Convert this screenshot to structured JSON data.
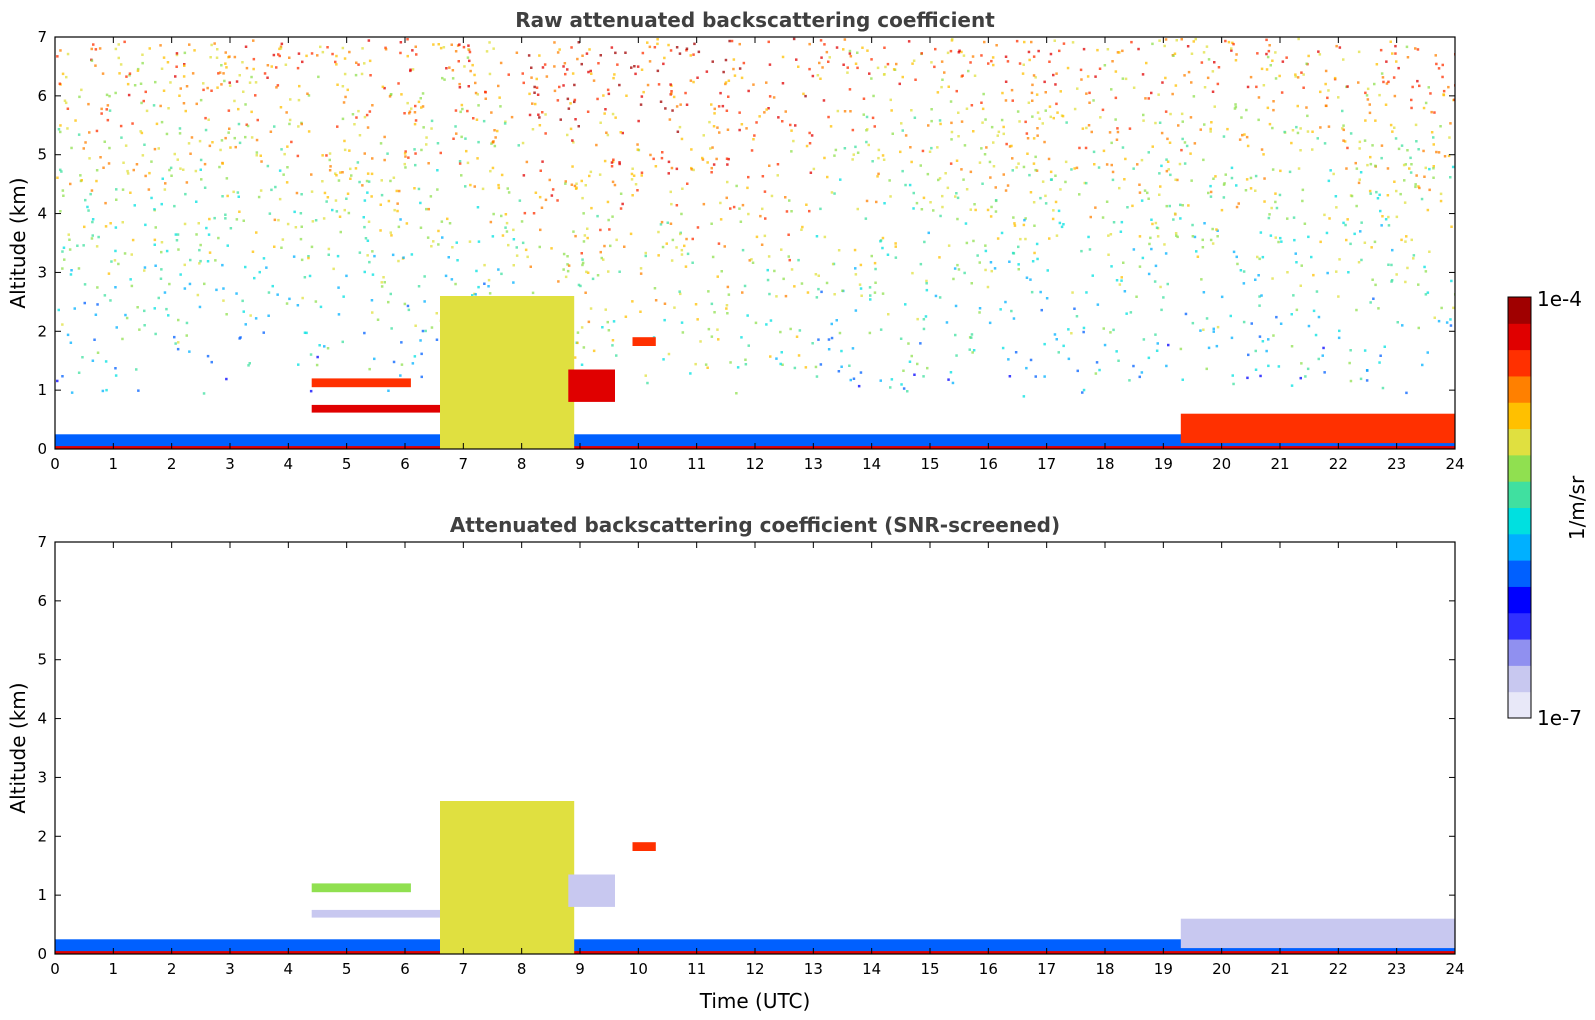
{
  "chart_data": [
    {
      "type": "heatmap",
      "title": "Raw attenuated backscattering coefficient",
      "xlabel": "",
      "ylabel": "Altitude (km)",
      "xlim": [
        0,
        24
      ],
      "ylim": [
        0,
        7
      ],
      "xticks": [
        "0",
        "1",
        "2",
        "3",
        "4",
        "5",
        "6",
        "7",
        "8",
        "9",
        "10",
        "11",
        "12",
        "13",
        "14",
        "15",
        "16",
        "17",
        "18",
        "19",
        "20",
        "21",
        "22",
        "23",
        "24"
      ],
      "yticks": [
        "0",
        "1",
        "2",
        "3",
        "4",
        "5",
        "6",
        "7"
      ],
      "noise": true,
      "features": [
        {
          "name": "surface layer",
          "t0": 0,
          "t1": 24,
          "z0": 0,
          "z1": 0.1,
          "level": 0.95
        },
        {
          "name": "boundary layer",
          "t0": 0,
          "t1": 24,
          "z0": 0.05,
          "z1": 0.25,
          "level": 0.3
        },
        {
          "name": "aerosol plume",
          "t0": 6.6,
          "t1": 8.9,
          "z0": 0,
          "z1": 2.6,
          "level": 0.65
        },
        {
          "name": "elevated layer",
          "t0": 4.4,
          "t1": 6.1,
          "z0": 1.05,
          "z1": 1.2,
          "level": 0.85
        },
        {
          "name": "elevated layer",
          "t0": 4.4,
          "t1": 6.6,
          "z0": 0.62,
          "z1": 0.75,
          "level": 0.9
        },
        {
          "name": "cloud patch",
          "t0": 8.8,
          "t1": 9.6,
          "z0": 0.8,
          "z1": 1.35,
          "level": 0.9
        },
        {
          "name": "cloud patch",
          "t0": 9.9,
          "t1": 10.3,
          "z0": 1.75,
          "z1": 1.9,
          "level": 0.85
        },
        {
          "name": "evening layer",
          "t0": 19.3,
          "t1": 24,
          "z0": 0.1,
          "z1": 0.6,
          "level": 0.85
        }
      ]
    },
    {
      "type": "heatmap",
      "title": "Attenuated backscattering coefficient (SNR-screened)",
      "xlabel": "Time (UTC)",
      "ylabel": "Altitude (km)",
      "xlim": [
        0,
        24
      ],
      "ylim": [
        0,
        7
      ],
      "xticks": [
        "0",
        "1",
        "2",
        "3",
        "4",
        "5",
        "6",
        "7",
        "8",
        "9",
        "10",
        "11",
        "12",
        "13",
        "14",
        "15",
        "16",
        "17",
        "18",
        "19",
        "20",
        "21",
        "22",
        "23",
        "24"
      ],
      "yticks": [
        "0",
        "1",
        "2",
        "3",
        "4",
        "5",
        "6",
        "7"
      ],
      "noise": false,
      "features": [
        {
          "name": "surface layer",
          "t0": 0,
          "t1": 24,
          "z0": 0,
          "z1": 0.1,
          "level": 0.95
        },
        {
          "name": "boundary layer",
          "t0": 0,
          "t1": 24,
          "z0": 0.05,
          "z1": 0.25,
          "level": 0.3
        },
        {
          "name": "aerosol plume",
          "t0": 6.6,
          "t1": 8.9,
          "z0": 0,
          "z1": 2.6,
          "level": 0.65
        },
        {
          "name": "elevated layer",
          "t0": 4.4,
          "t1": 6.1,
          "z0": 1.05,
          "z1": 1.2,
          "level": 0.6
        },
        {
          "name": "elevated layer",
          "t0": 4.4,
          "t1": 6.6,
          "z0": 0.62,
          "z1": 0.75,
          "level": 0.05
        },
        {
          "name": "cloud patch",
          "t0": 8.8,
          "t1": 9.6,
          "z0": 0.8,
          "z1": 1.35,
          "level": 0.05
        },
        {
          "name": "cloud patch",
          "t0": 9.9,
          "t1": 10.3,
          "z0": 1.75,
          "z1": 1.9,
          "level": 0.85
        },
        {
          "name": "evening layer",
          "t0": 19.3,
          "t1": 24,
          "z0": 0.1,
          "z1": 0.6,
          "level": 0.05
        }
      ]
    }
  ],
  "colorbar": {
    "label": "1/m/sr",
    "max_label": "1e-4",
    "min_label": "1e-7",
    "colors": [
      "#e8e8f8",
      "#c8c8f0",
      "#9090f0",
      "#3030ff",
      "#0000ff",
      "#0060ff",
      "#00b0ff",
      "#00e0e0",
      "#40e0a0",
      "#90e050",
      "#e0e040",
      "#ffc000",
      "#ff8000",
      "#ff3000",
      "#e00000",
      "#a00000"
    ]
  }
}
